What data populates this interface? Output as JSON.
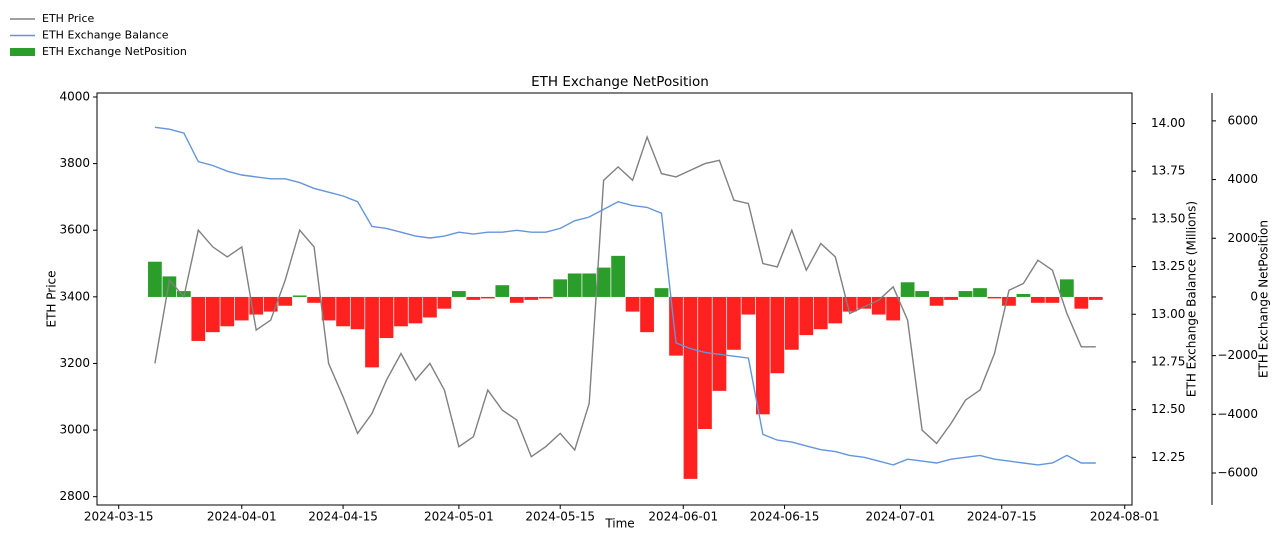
{
  "chart_data": {
    "type": "bar",
    "title": "ETH Exchange NetPosition",
    "xlabel": "Time",
    "ylabel": "ETH Price",
    "y2label": "ETH Exchange Balance (Millions)",
    "y3label": "ETH Exchange NetPosition",
    "x": [
      "2024-03-20",
      "2024-03-22",
      "2024-03-24",
      "2024-03-26",
      "2024-03-28",
      "2024-03-30",
      "2024-04-01",
      "2024-04-03",
      "2024-04-05",
      "2024-04-07",
      "2024-04-09",
      "2024-04-11",
      "2024-04-13",
      "2024-04-15",
      "2024-04-17",
      "2024-04-19",
      "2024-04-21",
      "2024-04-23",
      "2024-04-25",
      "2024-04-27",
      "2024-04-29",
      "2024-05-01",
      "2024-05-03",
      "2024-05-05",
      "2024-05-07",
      "2024-05-09",
      "2024-05-11",
      "2024-05-13",
      "2024-05-15",
      "2024-05-17",
      "2024-05-19",
      "2024-05-21",
      "2024-05-23",
      "2024-05-25",
      "2024-05-27",
      "2024-05-29",
      "2024-05-31",
      "2024-06-02",
      "2024-06-04",
      "2024-06-06",
      "2024-06-08",
      "2024-06-10",
      "2024-06-12",
      "2024-06-14",
      "2024-06-16",
      "2024-06-18",
      "2024-06-20",
      "2024-06-22",
      "2024-06-24",
      "2024-06-26",
      "2024-06-28",
      "2024-06-30",
      "2024-07-02",
      "2024-07-04",
      "2024-07-06",
      "2024-07-08",
      "2024-07-10",
      "2024-07-12",
      "2024-07-14",
      "2024-07-16",
      "2024-07-18",
      "2024-07-20",
      "2024-07-22",
      "2024-07-24",
      "2024-07-26",
      "2024-07-28"
    ],
    "series": [
      {
        "name": "ETH Price",
        "type": "line",
        "color": "#808080",
        "axis": "y",
        "values": [
          3200,
          3450,
          3400,
          3600,
          3550,
          3520,
          3550,
          3300,
          3330,
          3450,
          3600,
          3550,
          3200,
          3100,
          2990,
          3050,
          3150,
          3230,
          3150,
          3200,
          3120,
          2950,
          2980,
          3120,
          3060,
          3030,
          2920,
          2950,
          2990,
          2940,
          3080,
          3750,
          3790,
          3750,
          3880,
          3770,
          3760,
          3780,
          3800,
          3810,
          3690,
          3680,
          3500,
          3490,
          3600,
          3480,
          3560,
          3520,
          3350,
          3370,
          3390,
          3430,
          3330,
          3000,
          2960,
          3020,
          3090,
          3120,
          3230,
          3420,
          3440,
          3510,
          3480,
          3350,
          3250,
          3250
        ]
      },
      {
        "name": "ETH Exchange Balance",
        "type": "line",
        "color": "#6495dc",
        "axis": "y2",
        "values": [
          13.98,
          13.97,
          13.95,
          13.8,
          13.78,
          13.75,
          13.73,
          13.72,
          13.71,
          13.71,
          13.69,
          13.66,
          13.64,
          13.62,
          13.59,
          13.46,
          13.45,
          13.43,
          13.41,
          13.4,
          13.41,
          13.43,
          13.42,
          13.43,
          13.43,
          13.44,
          13.43,
          13.43,
          13.45,
          13.49,
          13.51,
          13.55,
          13.59,
          13.57,
          13.56,
          13.53,
          12.85,
          12.82,
          12.8,
          12.79,
          12.78,
          12.77,
          12.37,
          12.34,
          12.33,
          12.31,
          12.29,
          12.28,
          12.26,
          12.25,
          12.23,
          12.21,
          12.24,
          12.23,
          12.22,
          12.24,
          12.25,
          12.26,
          12.24,
          12.23,
          12.22,
          12.21,
          12.22,
          12.26,
          12.22,
          12.22
        ]
      },
      {
        "name": "ETH Exchange NetPosition",
        "type": "bar",
        "color": "#2a9d2a",
        "negative_color": "#ff2020",
        "axis": "y3",
        "values": [
          1200,
          700,
          200,
          -1500,
          -1200,
          -1000,
          -800,
          -600,
          -500,
          -300,
          50,
          -200,
          -800,
          -1000,
          -1100,
          -2400,
          -1400,
          -1000,
          -900,
          -700,
          -400,
          200,
          -100,
          -50,
          400,
          -200,
          -100,
          -50,
          600,
          800,
          800,
          1000,
          1400,
          -500,
          -1200,
          300,
          -2000,
          -6200,
          -4500,
          -3200,
          -1800,
          -600,
          -4000,
          -2600,
          -1800,
          -1300,
          -1100,
          -900,
          -500,
          -400,
          -600,
          -800,
          500,
          200,
          -300,
          -100,
          200,
          300,
          -50,
          -300,
          100,
          -200,
          -200,
          600,
          -400,
          -100
        ]
      }
    ],
    "xlim": [
      "2024-03-12",
      "2024-08-02"
    ],
    "xticks": [
      "2024-03-15",
      "2024-04-01",
      "2024-04-15",
      "2024-05-01",
      "2024-05-15",
      "2024-06-01",
      "2024-06-15",
      "2024-07-01",
      "2024-07-15",
      "2024-08-01"
    ],
    "ylim": [
      2775,
      4012
    ],
    "yticks": [
      2800,
      3000,
      3200,
      3400,
      3600,
      3800,
      4000
    ],
    "y2lim": [
      12.0,
      14.16
    ],
    "y2ticks": [
      {
        "value": 12.25,
        "label": "12.25"
      },
      {
        "value": 12.5,
        "label": "12.50"
      },
      {
        "value": 12.75,
        "label": "12.75"
      },
      {
        "value": 13,
        "label": "13.00"
      },
      {
        "value": 13.25,
        "label": "13.25"
      },
      {
        "value": 13.5,
        "label": "13.50"
      },
      {
        "value": 13.75,
        "label": "13.75"
      },
      {
        "value": 14,
        "label": "14.00"
      }
    ],
    "y3lim": [
      -7090,
      6950
    ],
    "y3ticks": [
      {
        "value": -6000,
        "label": "−6000"
      },
      {
        "value": -4000,
        "label": "−4000"
      },
      {
        "value": -2000,
        "label": "−2000"
      },
      0,
      2000,
      4000,
      6000
    ],
    "legend": "upper left",
    "grid": false
  }
}
